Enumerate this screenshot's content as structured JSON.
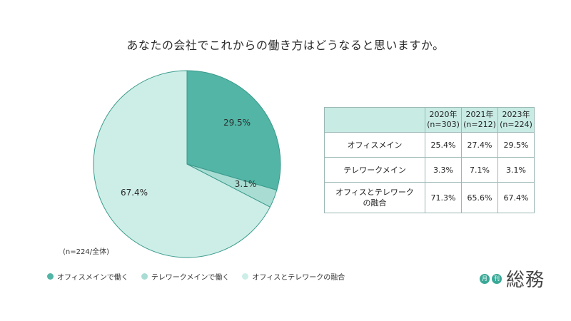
{
  "title": "あなたの会社でこれからの働き方はどうなると思いますか。",
  "sample_note": "(n=224/全体)",
  "colors": {
    "office": "#52b5a6",
    "telework": "#a9ddd3",
    "hybrid": "#cdeee7",
    "border": "#3a9a8c"
  },
  "chart_data": {
    "type": "pie",
    "title": "あなたの会社でこれからの働き方はどうなると思いますか。",
    "slices": [
      {
        "name": "オフィスメインで働く",
        "value": 29.5,
        "label": "29.5%"
      },
      {
        "name": "テレワークメインで働く",
        "value": 3.1,
        "label": "3.1%"
      },
      {
        "name": "オフィスとテレワークの融合",
        "value": 67.4,
        "label": "67.4%"
      }
    ],
    "legend_position": "bottom-left"
  },
  "legend": [
    {
      "label": "オフィスメインで働く",
      "color": "#52b5a6"
    },
    {
      "label": "テレワークメインで働く",
      "color": "#a9ddd3"
    },
    {
      "label": "オフィスとテレワークの融合",
      "color": "#cdeee7"
    }
  ],
  "table": {
    "headers": [
      {
        "year": "2020年",
        "n": "(n=303)"
      },
      {
        "year": "2021年",
        "n": "(n=212)"
      },
      {
        "year": "2023年",
        "n": "(n=224)"
      }
    ],
    "rows": [
      {
        "label": "オフィスメイン",
        "label2": "",
        "values": [
          "25.4%",
          "27.4%",
          "29.5%"
        ]
      },
      {
        "label": "テレワークメイン",
        "label2": "",
        "values": [
          "3.3%",
          "7.1%",
          "3.1%"
        ]
      },
      {
        "label": "オフィスとテレワーク",
        "label2": "の融合",
        "values": [
          "71.3%",
          "65.6%",
          "67.4%"
        ]
      }
    ]
  },
  "logo": {
    "badge1": "月",
    "badge2": "刊",
    "text": "総務"
  }
}
